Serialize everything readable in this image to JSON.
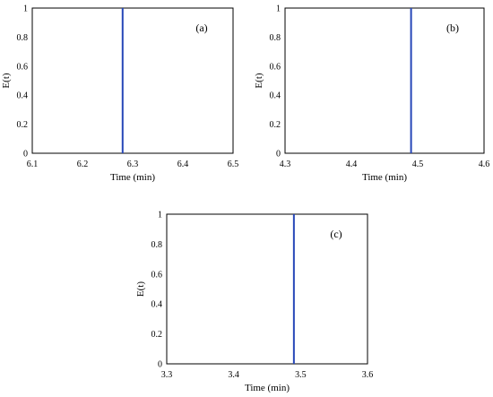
{
  "colors": {
    "series": "#2747b8",
    "frame": "#000000"
  },
  "chart_data": [
    {
      "panel": "(a)",
      "type": "line",
      "xlabel": "Time (min)",
      "ylabel": "E(t)",
      "xlim": [
        6.1,
        6.5
      ],
      "ylim": [
        0,
        1
      ],
      "xticks": [
        "6.1",
        "6.2",
        "6.3",
        "6.4",
        "6.5"
      ],
      "yticks": [
        "0",
        "0.2",
        "0.4",
        "0.6",
        "0.8",
        "1"
      ],
      "grid": false,
      "series": [
        {
          "x": [
            6.28,
            6.28
          ],
          "y": [
            0,
            1
          ]
        }
      ]
    },
    {
      "panel": "(b)",
      "type": "line",
      "xlabel": "Time (min)",
      "ylabel": "E(t)",
      "xlim": [
        4.3,
        4.6
      ],
      "ylim": [
        0,
        1
      ],
      "xticks": [
        "4.3",
        "4.4",
        "4.5",
        "4.6"
      ],
      "yticks": [
        "0",
        "0.2",
        "0.4",
        "0.6",
        "0.8",
        "1"
      ],
      "grid": false,
      "series": [
        {
          "x": [
            4.49,
            4.49
          ],
          "y": [
            0,
            1
          ]
        }
      ]
    },
    {
      "panel": "(c)",
      "type": "line",
      "xlabel": "Time (min)",
      "ylabel": "E(t)",
      "xlim": [
        3.3,
        3.6
      ],
      "ylim": [
        0,
        1
      ],
      "xticks": [
        "3.3",
        "3.4",
        "3.5",
        "3.6"
      ],
      "yticks": [
        "0",
        "0.2",
        "0.4",
        "0.6",
        "0.8",
        "1"
      ],
      "grid": false,
      "series": [
        {
          "x": [
            3.49,
            3.49
          ],
          "y": [
            0,
            1
          ]
        }
      ]
    }
  ]
}
